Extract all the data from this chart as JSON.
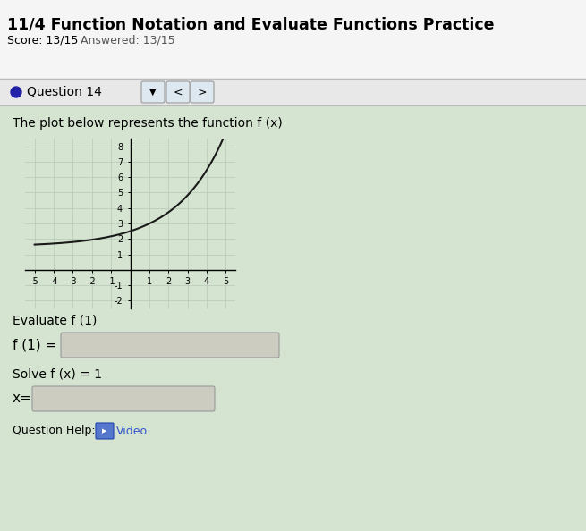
{
  "title": "11/4 Function Notation and Evaluate Functions Practice",
  "score_text_1": "Score: 13/15",
  "score_text_2": "Answered: 13/15",
  "question_label": "Question 14",
  "plot_text": "The plot below represents the function f (x)",
  "evaluate_text": "Evaluate f (1)",
  "f1_label": "f (1) =",
  "solve_text": "Solve f (x) = 1",
  "x_label": "x=",
  "help_text": "Question Help:",
  "video_text": "Video",
  "xlim": [
    -5.5,
    5.5
  ],
  "ylim": [
    -2.5,
    8.5
  ],
  "xticks": [
    -5,
    -4,
    -3,
    -2,
    -1,
    0,
    1,
    2,
    3,
    4,
    5
  ],
  "yticks": [
    -2,
    -1,
    0,
    1,
    2,
    3,
    4,
    5,
    6,
    7,
    8
  ],
  "curve_color": "#1a1a1a",
  "grid_color": "#b8c8b8",
  "content_bg": "#d4e4d0",
  "header_bg": "#f5f5f5",
  "bar_bg": "#e8e8e8",
  "input_bg": "#ccccc0",
  "dot_color": "#2222aa",
  "btn_color": "#dde8f0",
  "video_color": "#3355cc"
}
